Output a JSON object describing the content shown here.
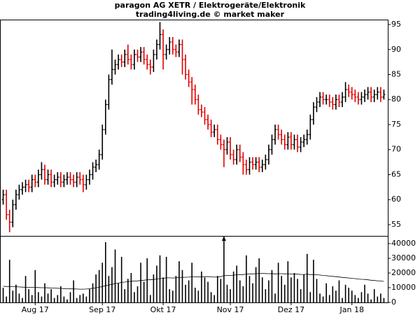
{
  "chart_data": [
    {
      "type": "ohlc",
      "title": "paragon AG XETR / Elektrogeräte/Elektronik",
      "subtitle": "trading4living.de © market maker",
      "up_color": "#000000",
      "down_color": "#e00000",
      "xlim": [
        -1,
        120
      ],
      "ylim": [
        52.76,
        95.98
      ],
      "yticks": [
        55,
        60,
        65,
        70,
        75,
        80,
        85,
        90,
        95
      ],
      "open": [
        60,
        61,
        57,
        55.5,
        59,
        61,
        62,
        62.5,
        63,
        62.5,
        64,
        63.5,
        65,
        66,
        64,
        65,
        63.5,
        64,
        64.5,
        63.5,
        64,
        64.5,
        64,
        63.5,
        64.5,
        64,
        63,
        64,
        65,
        66.5,
        67,
        69,
        74,
        79,
        84,
        86,
        87,
        88,
        87.5,
        89,
        88,
        87,
        89,
        88.5,
        89.5,
        88,
        87,
        86.5,
        89,
        91,
        93,
        89,
        90,
        91.5,
        90,
        89.5,
        91,
        88,
        85,
        83.5,
        82,
        80,
        78,
        77.5,
        76,
        75,
        73.5,
        74,
        72,
        71,
        70,
        71.5,
        69,
        68,
        70,
        68.5,
        67,
        66,
        67.5,
        67,
        67.5,
        66.5,
        67,
        68,
        70,
        72,
        74,
        73,
        72,
        71,
        72.5,
        71,
        72,
        70.5,
        71.5,
        72,
        73,
        76,
        78.5,
        79.5,
        80.5,
        80,
        80,
        79.5,
        79,
        80,
        79.5,
        80.5,
        82,
        81.5,
        81,
        80.5,
        80,
        80.5,
        81,
        81.5,
        80.5,
        81,
        81.5,
        80.5
      ],
      "high": [
        62,
        62,
        58,
        60,
        62,
        63,
        63.5,
        64,
        64,
        65,
        65,
        66,
        67.5,
        67,
        66,
        66,
        65,
        65.5,
        65.5,
        65,
        65.5,
        65.5,
        65,
        65.5,
        65.5,
        65,
        65,
        66,
        67.5,
        68,
        70,
        75,
        80,
        85,
        90,
        88,
        89,
        89,
        90,
        91,
        89,
        90,
        90,
        90.5,
        90.5,
        89,
        88,
        90,
        92,
        95.5,
        94,
        91,
        92.5,
        92.5,
        91,
        92,
        92,
        89,
        86,
        84.5,
        83,
        81,
        79,
        78.5,
        77,
        76,
        75,
        75,
        73,
        72,
        72.5,
        72.5,
        70,
        71,
        71,
        69.5,
        68,
        68.5,
        68.5,
        68.5,
        68.5,
        68,
        69,
        71,
        73,
        75,
        75,
        74,
        73,
        73.5,
        73.5,
        73,
        73,
        72.5,
        73,
        74,
        77,
        79.5,
        80.5,
        81.5,
        81.5,
        81,
        81,
        80.5,
        81,
        81,
        81.5,
        83.5,
        83,
        82.5,
        82,
        81.5,
        81.5,
        82,
        82.5,
        82.5,
        82,
        82.5,
        82.5,
        82
      ],
      "low": [
        59,
        56,
        53.5,
        54.5,
        58,
        60,
        61,
        61.5,
        61.5,
        61.5,
        62.5,
        62.5,
        64,
        63,
        63,
        62.5,
        62.5,
        63,
        62.5,
        62.5,
        63,
        63,
        62.5,
        62.5,
        63,
        61.5,
        62,
        63,
        64,
        65.5,
        66,
        68,
        73,
        78,
        83,
        85,
        86,
        86.5,
        86.5,
        87,
        86,
        86,
        87.5,
        87.5,
        87,
        86,
        85,
        85.5,
        88,
        90,
        86,
        88,
        89,
        89,
        88.5,
        88.5,
        85,
        84,
        82.5,
        79,
        79,
        77,
        76.5,
        75,
        74,
        72.5,
        72.5,
        71,
        70,
        66.5,
        69,
        68,
        67,
        67,
        67.5,
        65,
        65,
        65,
        66,
        66,
        65.5,
        65.5,
        66,
        67,
        69,
        71,
        72,
        71,
        70,
        70,
        70,
        70,
        69.5,
        69.5,
        70.5,
        71,
        72,
        75,
        77.5,
        78.5,
        79,
        79,
        78.5,
        78,
        78,
        78.5,
        78.5,
        79.5,
        80.5,
        80,
        79.5,
        79,
        79,
        79.5,
        80,
        79.5,
        79.5,
        80,
        79.5,
        80
      ],
      "close": [
        61,
        57,
        55.5,
        59,
        61,
        62,
        62.5,
        63,
        62.5,
        64,
        63.5,
        65,
        66,
        64,
        65,
        63.5,
        64,
        64.5,
        63.5,
        64,
        64.5,
        64,
        63.5,
        64.5,
        64,
        63,
        64,
        65,
        66.5,
        67,
        69,
        74,
        79,
        84,
        86,
        87,
        88,
        87.5,
        89,
        88,
        87,
        89,
        88.5,
        89.5,
        88,
        87,
        86.5,
        89,
        91,
        93,
        89,
        90,
        91.5,
        90,
        89.5,
        91,
        88,
        85,
        83.5,
        82,
        80,
        78,
        77.5,
        76,
        75,
        73.5,
        74,
        72,
        71,
        70,
        71.5,
        69,
        68,
        70,
        68.5,
        67,
        66,
        67.5,
        67,
        67.5,
        66.5,
        67,
        68,
        70,
        72,
        74,
        73,
        72,
        71,
        72.5,
        71,
        72,
        70.5,
        71.5,
        72,
        73,
        76,
        78.5,
        79.5,
        80.5,
        80,
        80,
        79.5,
        79,
        80,
        79.5,
        80.5,
        82,
        81.5,
        81,
        80.5,
        80,
        80.5,
        81,
        81.5,
        80.5,
        81,
        81.5,
        80.5,
        81
      ]
    },
    {
      "type": "bar",
      "color": "#000000",
      "ma_color": "#000000",
      "xlim": [
        -1,
        120
      ],
      "ylim": [
        0,
        44760
      ],
      "yticks": [
        0,
        10000,
        20000,
        30000,
        40000
      ],
      "xticks": [
        {
          "value": 10,
          "label": "Aug 17"
        },
        {
          "value": 31,
          "label": "Sep 17"
        },
        {
          "value": 50,
          "label": "Okt 17"
        },
        {
          "value": 71,
          "label": "Nov 17"
        },
        {
          "value": 90,
          "label": "Dez 17"
        },
        {
          "value": 109,
          "label": "Jan 18"
        }
      ],
      "values": [
        10000,
        4000,
        29000,
        8000,
        12000,
        6000,
        3000,
        18000,
        9000,
        5000,
        22000,
        7000,
        4000,
        13000,
        6000,
        9000,
        3000,
        5000,
        11000,
        4000,
        2000,
        7000,
        15000,
        3000,
        5000,
        6000,
        4000,
        9000,
        13000,
        19000,
        22000,
        27000,
        41000,
        18000,
        24000,
        36000,
        13000,
        31000,
        9000,
        16000,
        20000,
        7000,
        11000,
        27000,
        14000,
        30000,
        5000,
        19000,
        25000,
        32000,
        17000,
        31000,
        9000,
        8000,
        18000,
        28000,
        22000,
        12000,
        15000,
        27000,
        10000,
        8000,
        21000,
        17000,
        14000,
        7000,
        5000,
        18000,
        16000,
        46000,
        12000,
        9000,
        21000,
        25000,
        15000,
        11000,
        32000,
        18000,
        13000,
        24000,
        30000,
        17000,
        9000,
        15000,
        22000,
        6000,
        27000,
        18000,
        12000,
        28000,
        17000,
        20000,
        16000,
        9000,
        19000,
        33000,
        7000,
        29000,
        16000,
        6000,
        4000,
        13000,
        5000,
        11000,
        8000,
        15000,
        3000,
        12000,
        10000,
        8000,
        5000,
        3000,
        7000,
        12000,
        6000,
        2000,
        9000,
        4000,
        6000,
        3000
      ],
      "moving_average": [
        11000,
        10800,
        10900,
        10700,
        10600,
        10500,
        10400,
        10300,
        10300,
        10200,
        10200,
        10100,
        10000,
        10000,
        9900,
        9800,
        9700,
        9600,
        9500,
        9400,
        9300,
        9200,
        9200,
        9100,
        9000,
        9000,
        9100,
        9300,
        9600,
        9900,
        10300,
        10800,
        11400,
        11800,
        12300,
        12800,
        13100,
        13600,
        13800,
        14100,
        14400,
        14500,
        14600,
        14900,
        15100,
        15400,
        15400,
        15600,
        15900,
        16200,
        16400,
        16700,
        16700,
        16600,
        16700,
        16900,
        17100,
        17100,
        17200,
        17400,
        17400,
        17300,
        17400,
        17500,
        17500,
        17400,
        17200,
        17300,
        17500,
        18200,
        18300,
        18300,
        18500,
        18800,
        18900,
        18900,
        19300,
        19400,
        19400,
        19500,
        19600,
        19700,
        19600,
        19500,
        19600,
        19400,
        19500,
        19500,
        19400,
        19500,
        19300,
        19300,
        19200,
        19000,
        19000,
        19200,
        18900,
        18900,
        18800,
        18600,
        18300,
        18200,
        17900,
        17700,
        17500,
        17300,
        17000,
        16800,
        16600,
        16400,
        16200,
        15900,
        15700,
        15600,
        15400,
        15100,
        14900,
        14700,
        14500,
        14300
      ]
    }
  ]
}
